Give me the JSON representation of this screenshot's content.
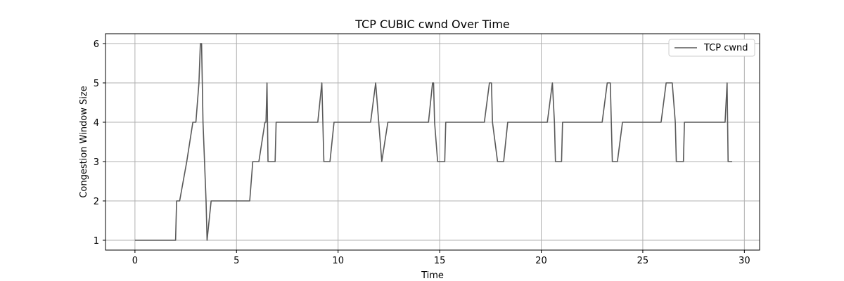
{
  "chart_data": {
    "type": "line",
    "title": "TCP CUBIC cwnd Over Time",
    "xlabel": "Time",
    "ylabel": "Congestion Window Size",
    "xlim": [
      -1.45,
      30.75
    ],
    "ylim": [
      0.75,
      6.25
    ],
    "xticks": [
      0,
      5,
      10,
      15,
      20,
      25,
      30
    ],
    "yticks": [
      1,
      2,
      3,
      4,
      5,
      6
    ],
    "grid": true,
    "legend_position": "top-right",
    "series": [
      {
        "name": "TCP cwnd",
        "color": "#595959",
        "points": [
          [
            0,
            1
          ],
          [
            2.0,
            1
          ],
          [
            2.05,
            2
          ],
          [
            2.2,
            2
          ],
          [
            2.55,
            3
          ],
          [
            2.85,
            4
          ],
          [
            3.0,
            4
          ],
          [
            3.15,
            5
          ],
          [
            3.22,
            6
          ],
          [
            3.28,
            6
          ],
          [
            3.35,
            4
          ],
          [
            3.5,
            2
          ],
          [
            3.55,
            1
          ],
          [
            3.75,
            2
          ],
          [
            5.65,
            2
          ],
          [
            5.8,
            3
          ],
          [
            6.1,
            3
          ],
          [
            6.4,
            4
          ],
          [
            6.45,
            4
          ],
          [
            6.5,
            5
          ],
          [
            6.55,
            3
          ],
          [
            6.9,
            3
          ],
          [
            6.95,
            4
          ],
          [
            9.0,
            4
          ],
          [
            9.2,
            5
          ],
          [
            9.3,
            3
          ],
          [
            9.6,
            3
          ],
          [
            9.8,
            4
          ],
          [
            11.6,
            4
          ],
          [
            11.85,
            5
          ],
          [
            12.15,
            3
          ],
          [
            12.45,
            4
          ],
          [
            14.45,
            4
          ],
          [
            14.65,
            5
          ],
          [
            14.7,
            5
          ],
          [
            14.75,
            4
          ],
          [
            14.9,
            3
          ],
          [
            15.25,
            3
          ],
          [
            15.3,
            4
          ],
          [
            17.2,
            4
          ],
          [
            17.45,
            5
          ],
          [
            17.55,
            5
          ],
          [
            17.6,
            4
          ],
          [
            17.85,
            3
          ],
          [
            18.15,
            3
          ],
          [
            18.35,
            4
          ],
          [
            20.3,
            4
          ],
          [
            20.55,
            5
          ],
          [
            20.65,
            4
          ],
          [
            20.7,
            3
          ],
          [
            21.0,
            3
          ],
          [
            21.05,
            4
          ],
          [
            23.0,
            4
          ],
          [
            23.25,
            5
          ],
          [
            23.4,
            5
          ],
          [
            23.45,
            4
          ],
          [
            23.5,
            3
          ],
          [
            23.75,
            3
          ],
          [
            24.0,
            4
          ],
          [
            25.9,
            4
          ],
          [
            26.15,
            5
          ],
          [
            26.45,
            5
          ],
          [
            26.6,
            4
          ],
          [
            26.65,
            3
          ],
          [
            27.0,
            3
          ],
          [
            27.05,
            4
          ],
          [
            29.05,
            4
          ],
          [
            29.15,
            5
          ],
          [
            29.2,
            3
          ],
          [
            29.4,
            3
          ]
        ]
      }
    ]
  }
}
